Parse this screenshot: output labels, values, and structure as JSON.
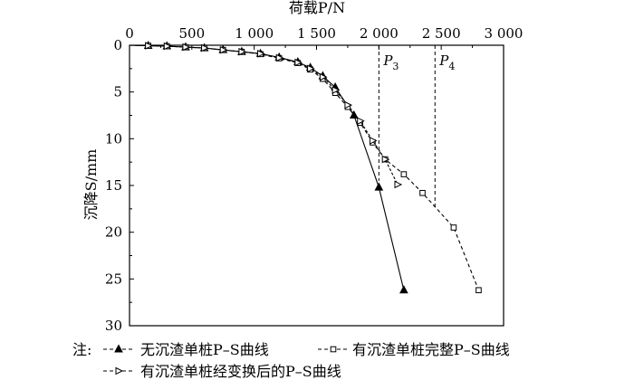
{
  "chart_data": {
    "type": "line",
    "xlabel": "荷载P/N",
    "ylabel": "沉降S/mm",
    "xlim": [
      0,
      3000
    ],
    "ylim": [
      0,
      30
    ],
    "y_reversed": true,
    "x_axis_position": "top",
    "x_ticks": [
      0,
      500,
      1000,
      1500,
      2000,
      2500,
      3000
    ],
    "x_tick_labels": [
      "0",
      "500",
      "1 000",
      "1 500",
      "2 000",
      "2 500",
      "3 000"
    ],
    "y_ticks": [
      0,
      5,
      10,
      15,
      20,
      25,
      30
    ],
    "y_tick_labels": [
      "0",
      "5",
      "10",
      "15",
      "20",
      "25",
      "30"
    ],
    "legend_prefix": "注:",
    "series": [
      {
        "name": "无沉渣单桩P–S曲线",
        "marker": "filled-triangle",
        "x": [
          0,
          150,
          300,
          450,
          600,
          750,
          900,
          1050,
          1200,
          1350,
          1450,
          1550,
          1650,
          1800,
          2000,
          2200
        ],
        "y": [
          0,
          0.05,
          0.1,
          0.2,
          0.3,
          0.5,
          0.7,
          0.9,
          1.3,
          1.8,
          2.4,
          3.3,
          4.5,
          7.5,
          15.2,
          26.2
        ]
      },
      {
        "name": "有沉渣单桩完整P–S曲线",
        "marker": "open-square",
        "x": [
          0,
          150,
          300,
          450,
          600,
          750,
          900,
          1050,
          1200,
          1350,
          1450,
          1550,
          1650,
          1750,
          1850,
          1950,
          2050,
          2200,
          2350,
          2600,
          2800
        ],
        "y": [
          0,
          0.05,
          0.1,
          0.2,
          0.3,
          0.5,
          0.7,
          0.95,
          1.4,
          1.9,
          2.6,
          3.6,
          5.1,
          6.6,
          8.3,
          10.4,
          12.2,
          13.8,
          15.8,
          19.5,
          26.2
        ]
      },
      {
        "name": "有沉渣单桩经变换后的P–S曲线",
        "marker": "open-triangle-right",
        "x": [
          0,
          150,
          300,
          450,
          600,
          750,
          900,
          1050,
          1200,
          1350,
          1450,
          1550,
          1650,
          1750,
          1850,
          1950,
          2050,
          2150
        ],
        "y": [
          0,
          0.05,
          0.1,
          0.2,
          0.3,
          0.5,
          0.7,
          0.9,
          1.35,
          1.85,
          2.5,
          3.4,
          4.8,
          6.4,
          8.1,
          10.2,
          12.2,
          14.9
        ]
      }
    ],
    "reference_lines": [
      {
        "label": "P",
        "subscript": "3",
        "x": 2000
      },
      {
        "label": "P",
        "subscript": "4",
        "x": 2450
      }
    ]
  }
}
